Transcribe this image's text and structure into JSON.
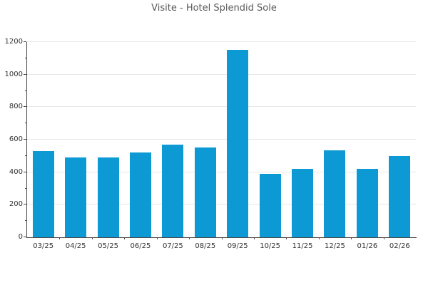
{
  "header": {
    "title": "Visite - Hotel Splendid Sole"
  },
  "chart_data": {
    "type": "bar",
    "title": "Visite - Hotel Splendid Sole",
    "categories": [
      "03/25",
      "04/25",
      "05/25",
      "06/25",
      "07/25",
      "08/25",
      "09/25",
      "10/25",
      "11/25",
      "12/25",
      "01/26",
      "02/26"
    ],
    "values": [
      530,
      490,
      490,
      520,
      570,
      550,
      1150,
      390,
      420,
      535,
      420,
      500
    ],
    "xlabel": "",
    "ylabel": "",
    "ylim": [
      0,
      1200
    ],
    "yticks": [
      0,
      200,
      400,
      600,
      800,
      1000,
      1200
    ],
    "y_minor_step": 100,
    "grid": "horizontal-major-only",
    "legend": "none",
    "colors": {
      "bar": "#0d99d4",
      "axis": "#4a4a4a",
      "grid": "#e7e7e7",
      "title": "#595959",
      "tick_label": "#333333",
      "background": "#ffffff"
    }
  }
}
